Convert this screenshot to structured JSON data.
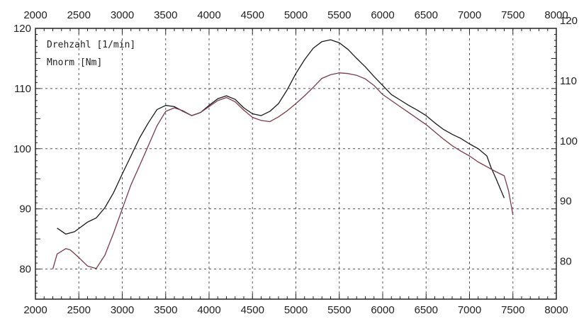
{
  "chart_data": {
    "type": "line",
    "x_ticks_top": [
      "2000",
      "2500",
      "3000",
      "3500",
      "4000",
      "4500",
      "5000",
      "5500",
      "6000",
      "6500",
      "7000",
      "7500",
      "8000"
    ],
    "x_ticks_bottom": [
      "2000",
      "2500",
      "3000",
      "3500",
      "4000",
      "4500",
      "5000",
      "5500",
      "6000",
      "6500",
      "7000",
      "7500",
      "8000"
    ],
    "y_ticks_left": [
      "120",
      "110",
      "100",
      "90",
      "80"
    ],
    "y_ticks_right": [
      "120",
      "110",
      "100",
      "90",
      "80"
    ],
    "xlim": [
      2000,
      8000
    ],
    "ylim": [
      75,
      120
    ],
    "grid": true,
    "legend": [
      "Drehzahl [1/min]",
      "Mnorm [Nm]"
    ],
    "legend_position": "top-left",
    "series": [
      {
        "name": "",
        "color": "#1a1a1a",
        "x": [
          2250,
          2350,
          2450,
          2600,
          2700,
          2800,
          2900,
          3000,
          3100,
          3200,
          3300,
          3400,
          3500,
          3600,
          3700,
          3800,
          3900,
          4000,
          4100,
          4200,
          4300,
          4400,
          4500,
          4600,
          4700,
          4800,
          4900,
          5000,
          5100,
          5200,
          5300,
          5400,
          5500,
          5600,
          5700,
          5800,
          5900,
          6000,
          6100,
          6200,
          6300,
          6400,
          6500,
          6600,
          6700,
          6800,
          6900,
          7000,
          7100,
          7200,
          7250,
          7300,
          7350,
          7400
        ],
        "y": [
          86.8,
          85.8,
          86.2,
          87.8,
          88.5,
          90.2,
          92.7,
          95.8,
          98.8,
          101.8,
          104.3,
          106.5,
          107.2,
          107.0,
          106.2,
          105.5,
          106.0,
          107.2,
          108.3,
          108.8,
          108.2,
          106.8,
          105.8,
          105.5,
          106.2,
          107.5,
          109.8,
          112.5,
          114.8,
          116.7,
          117.8,
          118.1,
          117.6,
          116.5,
          115.0,
          113.6,
          112.0,
          110.5,
          109.0,
          108.1,
          107.2,
          106.4,
          105.5,
          104.3,
          103.2,
          102.4,
          101.7,
          100.8,
          100.0,
          98.8,
          96.8,
          95.2,
          93.5,
          91.8
        ]
      },
      {
        "name": "",
        "color": "#7a3b4a",
        "x": [
          2200,
          2250,
          2350,
          2400,
          2500,
          2600,
          2700,
          2800,
          2900,
          3000,
          3100,
          3200,
          3300,
          3400,
          3500,
          3600,
          3700,
          3800,
          3900,
          4000,
          4100,
          4200,
          4300,
          4400,
          4500,
          4600,
          4700,
          4800,
          4900,
          5000,
          5100,
          5200,
          5300,
          5400,
          5500,
          5600,
          5700,
          5800,
          5900,
          6000,
          6100,
          6200,
          6300,
          6400,
          6500,
          6600,
          6700,
          6800,
          6900,
          7000,
          7100,
          7200,
          7300,
          7400,
          7450,
          7500
        ],
        "y": [
          80.0,
          82.5,
          83.4,
          83.2,
          81.9,
          80.5,
          80.1,
          82.3,
          86.0,
          90.0,
          94.0,
          97.2,
          100.5,
          103.8,
          106.2,
          106.8,
          106.3,
          105.5,
          106.0,
          107.0,
          108.0,
          108.5,
          107.8,
          106.4,
          105.2,
          104.7,
          104.5,
          105.3,
          106.3,
          107.5,
          108.8,
          110.2,
          111.7,
          112.3,
          112.6,
          112.5,
          112.2,
          111.6,
          110.5,
          109.0,
          108.0,
          107.0,
          106.0,
          105.0,
          104.0,
          102.8,
          101.6,
          100.5,
          99.6,
          98.8,
          97.8,
          97.0,
          96.2,
          95.5,
          93.0,
          89.0
        ]
      }
    ]
  }
}
